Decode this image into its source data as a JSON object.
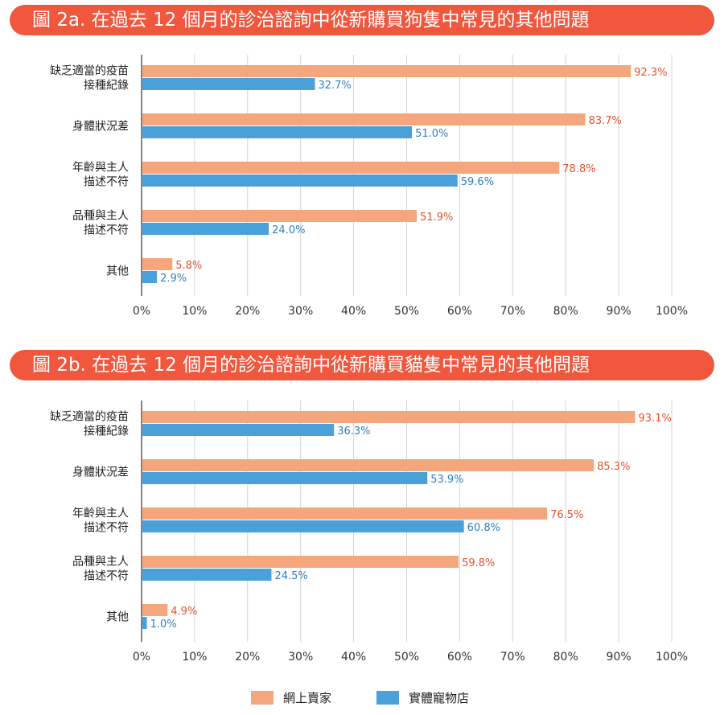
{
  "charts": [
    {
      "title": "圖 2a. 在過去 12 個月的診治諮詢中從新購買狗隻中常見的其他問題"
    },
    {
      "title": "圖 2b. 在過去 12 個月的診治諮詢中從新購買貓隻中常見的其他問題"
    }
  ],
  "legend": {
    "online": "網上賣家",
    "store": "實體寵物店"
  },
  "colors": {
    "title_bg": "#f0573d",
    "online": "#f5a67c",
    "store": "#4aa0d9",
    "online_label": "#e8512f",
    "store_label": "#2f7fc1"
  },
  "chart_data": [
    {
      "type": "bar",
      "orientation": "horizontal",
      "categories": [
        [
          "缺乏適當的疫苗",
          "接種紀錄"
        ],
        [
          "身體狀況差"
        ],
        [
          "年齡與主人",
          "描述不符"
        ],
        [
          "品種與主人",
          "描述不符"
        ],
        [
          "其他"
        ]
      ],
      "series": [
        {
          "name": "網上賣家",
          "values": [
            92.3,
            83.7,
            78.8,
            51.9,
            5.8
          ],
          "labels": [
            "92.3%",
            "83.7%",
            "78.8%",
            "51.9%",
            "5.8%"
          ]
        },
        {
          "name": "實體寵物店",
          "values": [
            32.7,
            51.0,
            59.6,
            24.0,
            2.9
          ],
          "labels": [
            "32.7%",
            "51.0%",
            "59.6%",
            "24.0%",
            "2.9%"
          ]
        }
      ],
      "xlim": [
        0,
        100
      ],
      "xticks": [
        "0%",
        "10%",
        "20%",
        "30%",
        "40%",
        "50%",
        "60%",
        "70%",
        "80%",
        "90%",
        "100%"
      ],
      "grid": true
    },
    {
      "type": "bar",
      "orientation": "horizontal",
      "categories": [
        [
          "缺乏適當的疫苗",
          "接種紀錄"
        ],
        [
          "身體狀況差"
        ],
        [
          "年齡與主人",
          "描述不符"
        ],
        [
          "品種與主人",
          "描述不符"
        ],
        [
          "其他"
        ]
      ],
      "series": [
        {
          "name": "網上賣家",
          "values": [
            93.1,
            85.3,
            76.5,
            59.8,
            4.9
          ],
          "labels": [
            "93.1%",
            "85.3%",
            "76.5%",
            "59.8%",
            "4.9%"
          ]
        },
        {
          "name": "實體寵物店",
          "values": [
            36.3,
            53.9,
            60.8,
            24.5,
            1.0
          ],
          "labels": [
            "36.3%",
            "53.9%",
            "60.8%",
            "24.5%",
            "1.0%"
          ]
        }
      ],
      "xlim": [
        0,
        100
      ],
      "xticks": [
        "0%",
        "10%",
        "20%",
        "30%",
        "40%",
        "50%",
        "60%",
        "70%",
        "80%",
        "90%",
        "100%"
      ],
      "grid": true
    }
  ]
}
